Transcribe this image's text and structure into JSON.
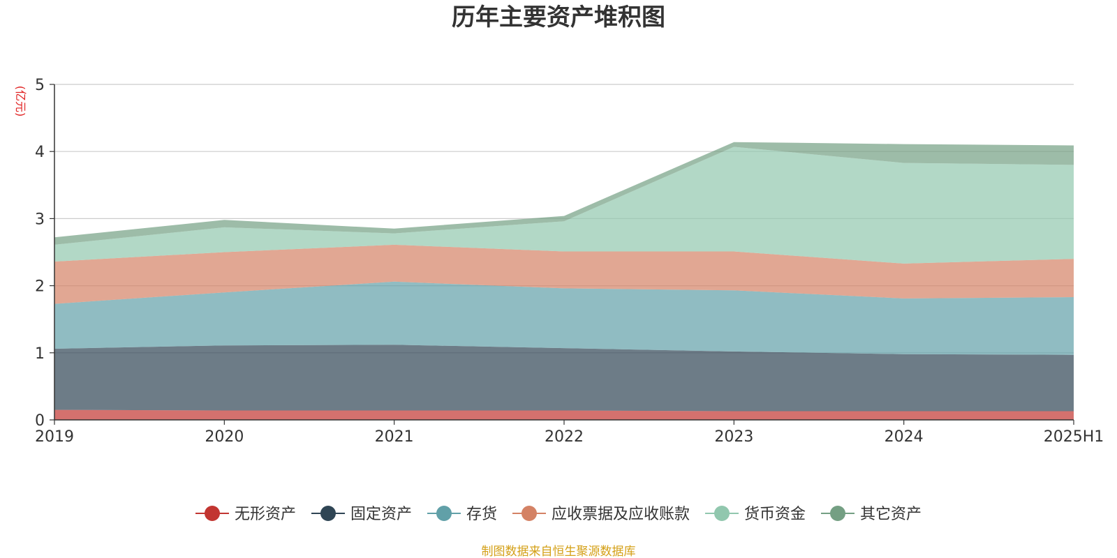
{
  "chart_data": {
    "type": "area",
    "stacked": true,
    "title": "历年主要资产堆积图",
    "unit_label": "(亿元)",
    "x": [
      "2019",
      "2020",
      "2021",
      "2022",
      "2023",
      "2024",
      "2025H1"
    ],
    "ylim": [
      0,
      5
    ],
    "yticks": [
      "0",
      "1",
      "2",
      "3",
      "4",
      "5"
    ],
    "grid": true,
    "legend_position": "bottom",
    "series": [
      {
        "name": "无形资产",
        "color": "#c23531",
        "values": [
          0.15,
          0.14,
          0.14,
          0.14,
          0.13,
          0.13,
          0.13
        ]
      },
      {
        "name": "固定资产",
        "color": "#2f4554",
        "values": [
          0.91,
          0.97,
          0.98,
          0.93,
          0.89,
          0.85,
          0.84
        ]
      },
      {
        "name": "存货",
        "color": "#61a0a8",
        "values": [
          0.67,
          0.79,
          0.94,
          0.89,
          0.91,
          0.83,
          0.86
        ]
      },
      {
        "name": "应收票据及应收账款",
        "color": "#d48265",
        "values": [
          0.63,
          0.6,
          0.55,
          0.55,
          0.58,
          0.52,
          0.57
        ]
      },
      {
        "name": "货币资金",
        "color": "#91c7ae",
        "values": [
          0.25,
          0.37,
          0.17,
          0.45,
          1.56,
          1.5,
          1.4
        ]
      },
      {
        "name": "其它资产",
        "color": "#749f83",
        "values": [
          0.11,
          0.11,
          0.07,
          0.08,
          0.07,
          0.28,
          0.29
        ]
      }
    ]
  },
  "source_note": "制图数据来自恒生聚源数据库"
}
